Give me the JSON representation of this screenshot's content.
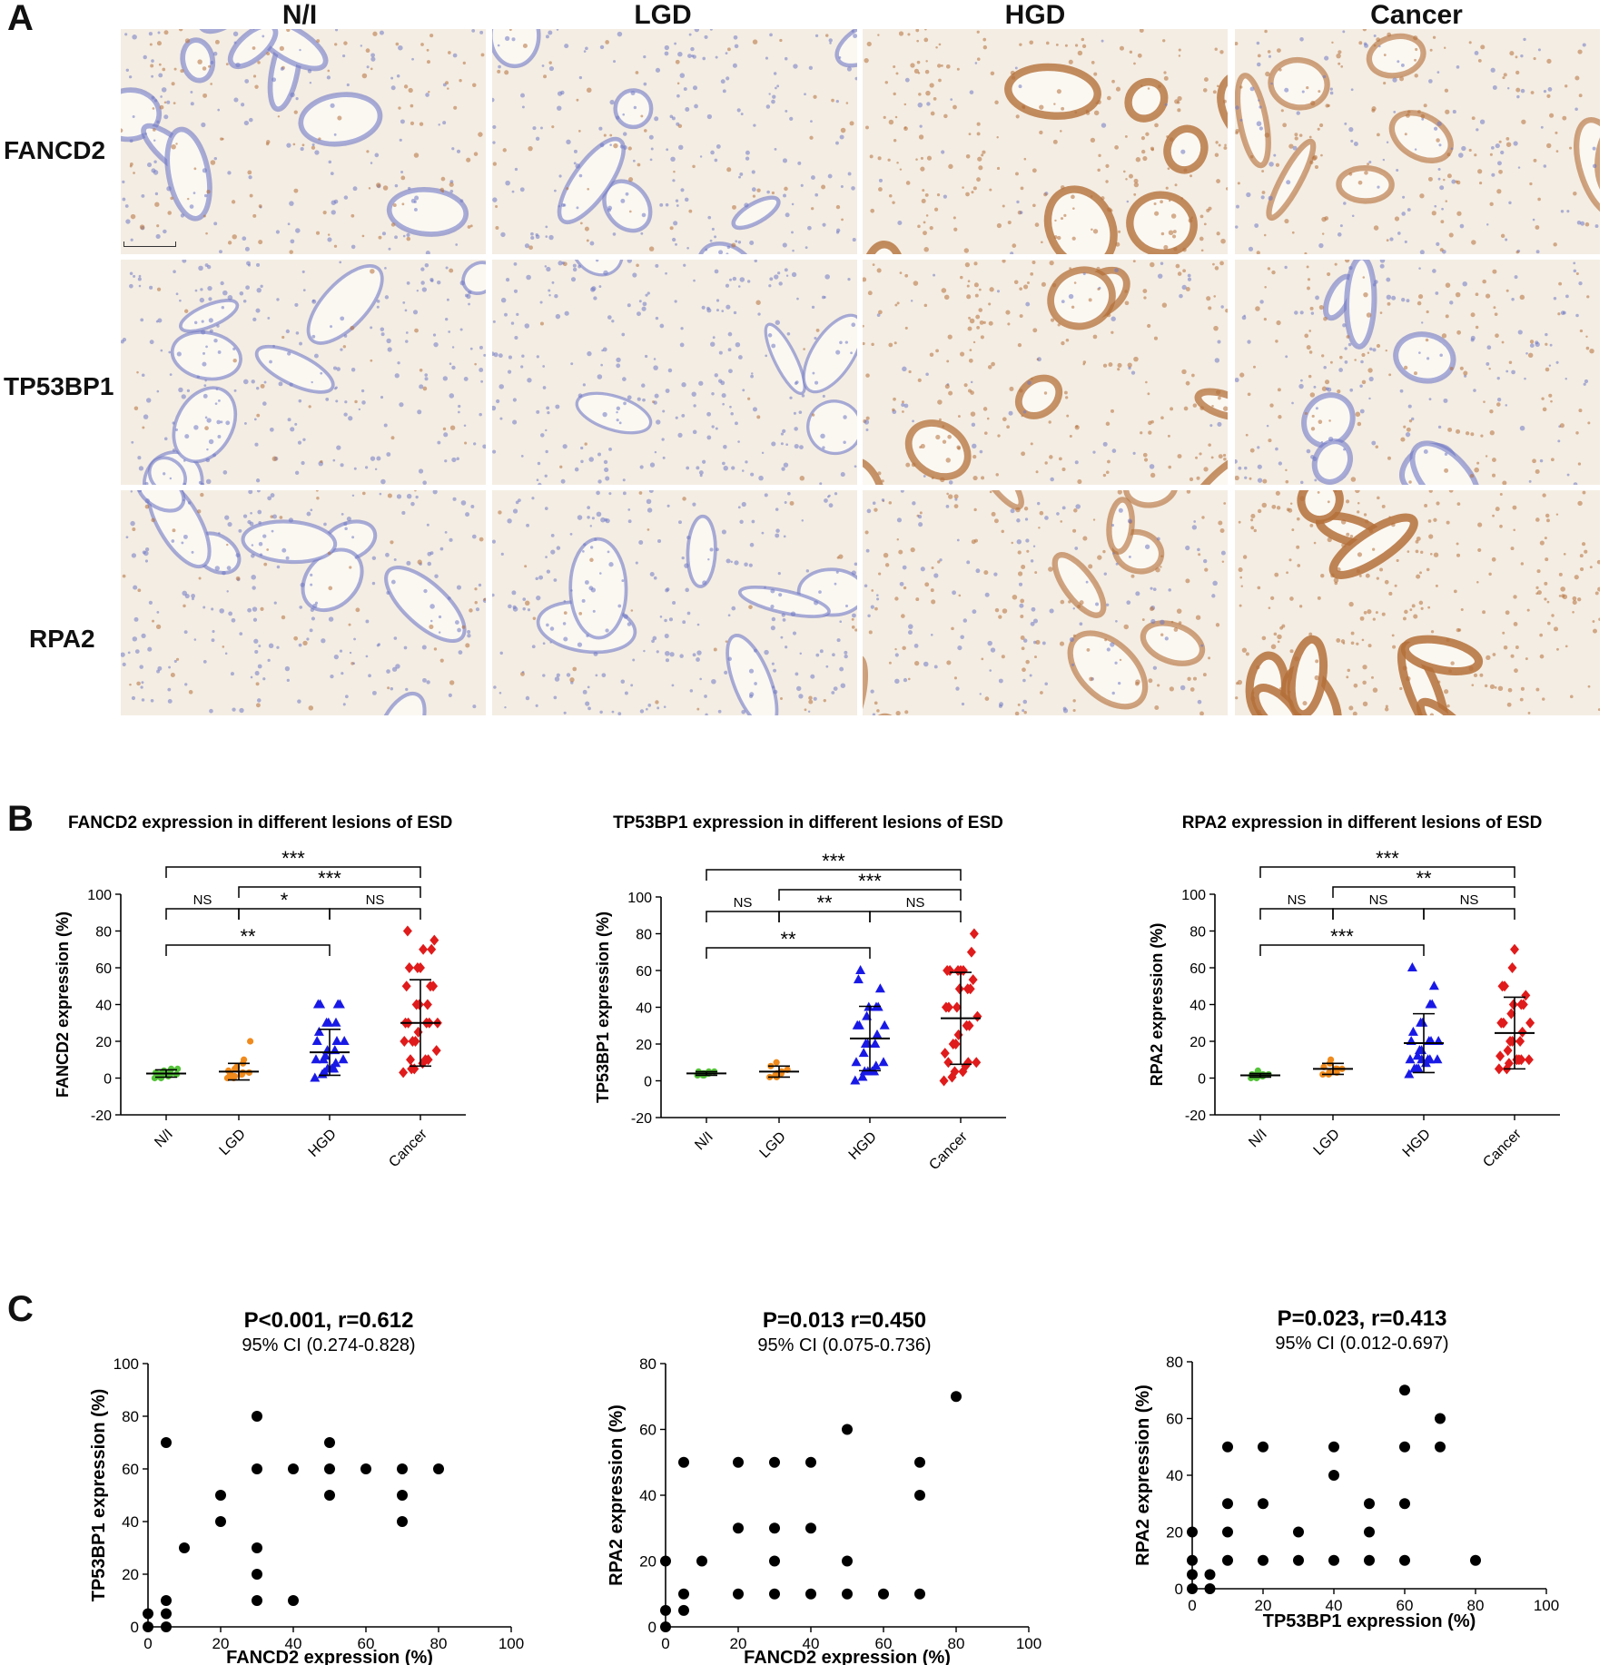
{
  "panels": {
    "a": "A",
    "b": "B",
    "c": "C"
  },
  "figure_a": {
    "columns": [
      "N/I",
      "LGD",
      "HGD",
      "Cancer"
    ],
    "rows": [
      "FANCD2",
      "TP53BP1",
      "RPA2"
    ],
    "stain_colors": {
      "hematoxylin": "#6f78c4",
      "dab": "#b4703a",
      "background": "#f4ede3"
    }
  },
  "chart_data": [
    {
      "type": "scatter",
      "title": "FANCD2 expression in different lesions of ESD",
      "ylabel": "FANCD2 expression (%)",
      "categories": [
        "N/I",
        "LGD",
        "HGD",
        "Cancer"
      ],
      "ylim": [
        -20,
        100
      ],
      "yticks": [
        -20,
        0,
        20,
        40,
        60,
        80,
        100
      ],
      "series": [
        {
          "category": "N/I",
          "color": "#55c43a",
          "marker": "circle",
          "mean": 2.5,
          "sd": 2,
          "values": [
            0,
            0,
            1,
            1,
            2,
            2,
            2,
            3,
            3,
            3,
            4,
            4,
            5,
            5,
            1,
            2
          ]
        },
        {
          "category": "LGD",
          "color": "#f08a1c",
          "marker": "circle",
          "mean": 3.5,
          "sd": 4.5,
          "values": [
            0,
            0,
            1,
            2,
            2,
            3,
            3,
            4,
            5,
            5,
            6,
            8,
            10,
            20,
            1,
            2
          ]
        },
        {
          "category": "HGD",
          "color": "#1919e6",
          "marker": "triangle",
          "mean": 14,
          "sd": 12.5,
          "values": [
            0,
            2,
            3,
            5,
            5,
            8,
            10,
            10,
            10,
            12,
            15,
            15,
            20,
            20,
            20,
            25,
            30,
            30,
            30,
            40,
            40,
            40,
            40,
            5
          ]
        },
        {
          "category": "Cancer",
          "color": "#e01b1b",
          "marker": "diamond",
          "mean": 30,
          "sd": 23.5,
          "values": [
            3,
            5,
            5,
            8,
            10,
            10,
            15,
            20,
            20,
            20,
            25,
            30,
            30,
            30,
            30,
            30,
            40,
            40,
            40,
            50,
            50,
            50,
            60,
            60,
            60,
            70,
            70,
            75,
            80,
            10
          ]
        }
      ],
      "comparisons": [
        {
          "from": "N/I",
          "to": "Cancer",
          "label": "***"
        },
        {
          "from": "LGD",
          "to": "Cancer",
          "label": "***"
        },
        {
          "from": "N/I",
          "to": "LGD",
          "label": "NS"
        },
        {
          "from": "LGD",
          "to": "HGD",
          "label": "*"
        },
        {
          "from": "HGD",
          "to": "Cancer",
          "label": "NS"
        },
        {
          "from": "N/I",
          "to": "HGD",
          "label": "**"
        }
      ]
    },
    {
      "type": "scatter",
      "title": "TP53BP1 expression in different lesions of ESD",
      "ylabel": "TP53BP1 expression (%)",
      "categories": [
        "N/I",
        "LGD",
        "HGD",
        "Cancer"
      ],
      "ylim": [
        -20,
        100
      ],
      "yticks": [
        -20,
        0,
        20,
        40,
        60,
        80,
        100
      ],
      "series": [
        {
          "category": "N/I",
          "color": "#55c43a",
          "marker": "circle",
          "mean": 4,
          "sd": 1,
          "values": [
            3,
            3,
            4,
            4,
            4,
            5,
            5,
            5,
            3,
            4
          ]
        },
        {
          "category": "LGD",
          "color": "#f08a1c",
          "marker": "circle",
          "mean": 5,
          "sd": 3,
          "values": [
            2,
            3,
            3,
            4,
            5,
            5,
            6,
            8,
            10,
            2,
            4
          ]
        },
        {
          "category": "HGD",
          "color": "#1919e6",
          "marker": "triangle",
          "mean": 23,
          "sd": 17.5,
          "values": [
            0,
            2,
            5,
            5,
            5,
            8,
            10,
            10,
            15,
            20,
            20,
            20,
            25,
            30,
            30,
            30,
            35,
            40,
            40,
            40,
            50,
            55,
            60,
            5
          ]
        },
        {
          "category": "Cancer",
          "color": "#e01b1b",
          "marker": "diamond",
          "mean": 34,
          "sd": 25,
          "values": [
            0,
            2,
            5,
            5,
            8,
            10,
            10,
            15,
            20,
            20,
            25,
            30,
            30,
            35,
            40,
            40,
            40,
            50,
            50,
            50,
            55,
            60,
            60,
            60,
            60,
            60,
            70,
            80,
            10
          ]
        }
      ],
      "comparisons": [
        {
          "from": "N/I",
          "to": "Cancer",
          "label": "***"
        },
        {
          "from": "LGD",
          "to": "Cancer",
          "label": "***"
        },
        {
          "from": "N/I",
          "to": "LGD",
          "label": "NS"
        },
        {
          "from": "LGD",
          "to": "HGD",
          "label": "**"
        },
        {
          "from": "HGD",
          "to": "Cancer",
          "label": "NS"
        },
        {
          "from": "N/I",
          "to": "HGD",
          "label": "**"
        }
      ]
    },
    {
      "type": "scatter",
      "title": "RPA2 expression in different lesions of ESD",
      "ylabel": "RPA2 expression (%)",
      "categories": [
        "N/I",
        "LGD",
        "HGD",
        "Cancer"
      ],
      "ylim": [
        -20,
        100
      ],
      "yticks": [
        -20,
        0,
        20,
        40,
        60,
        80,
        100
      ],
      "series": [
        {
          "category": "N/I",
          "color": "#55c43a",
          "marker": "circle",
          "mean": 1.5,
          "sd": 1,
          "values": [
            0,
            0,
            1,
            1,
            1,
            2,
            2,
            2,
            3,
            4,
            1
          ]
        },
        {
          "category": "LGD",
          "color": "#f08a1c",
          "marker": "circle",
          "mean": 5,
          "sd": 3,
          "values": [
            2,
            2,
            3,
            4,
            5,
            5,
            5,
            6,
            8,
            8,
            10,
            3,
            5
          ]
        },
        {
          "category": "HGD",
          "color": "#1919e6",
          "marker": "triangle",
          "mean": 19,
          "sd": 16,
          "values": [
            2,
            5,
            5,
            8,
            10,
            10,
            10,
            10,
            12,
            15,
            15,
            20,
            20,
            20,
            20,
            25,
            30,
            30,
            40,
            40,
            50,
            60,
            5,
            10
          ]
        },
        {
          "category": "Cancer",
          "color": "#e01b1b",
          "marker": "diamond",
          "mean": 24.5,
          "sd": 19.5,
          "values": [
            5,
            5,
            8,
            10,
            10,
            10,
            10,
            12,
            15,
            20,
            20,
            20,
            25,
            30,
            30,
            30,
            35,
            40,
            40,
            40,
            45,
            50,
            50,
            60,
            70,
            10
          ]
        }
      ],
      "comparisons": [
        {
          "from": "N/I",
          "to": "Cancer",
          "label": "***"
        },
        {
          "from": "LGD",
          "to": "Cancer",
          "label": "**"
        },
        {
          "from": "N/I",
          "to": "LGD",
          "label": "NS"
        },
        {
          "from": "LGD",
          "to": "HGD",
          "label": "NS"
        },
        {
          "from": "HGD",
          "to": "Cancer",
          "label": "NS"
        },
        {
          "from": "N/I",
          "to": "HGD",
          "label": "***"
        }
      ]
    },
    {
      "type": "scatter",
      "title": "P<0.001, r=0.612",
      "subtitle": "95% CI (0.274-0.828)",
      "xlabel": "FANCD2 expression (%)",
      "ylabel": "TP53BP1 expression (%)",
      "xlim": [
        0,
        100
      ],
      "ylim": [
        0,
        100
      ],
      "xticks": [
        0,
        20,
        40,
        60,
        80,
        100
      ],
      "yticks": [
        0,
        20,
        40,
        60,
        80,
        100
      ],
      "points": [
        [
          0,
          0
        ],
        [
          0,
          5
        ],
        [
          5,
          0
        ],
        [
          5,
          5
        ],
        [
          5,
          10
        ],
        [
          5,
          70
        ],
        [
          10,
          30
        ],
        [
          20,
          40
        ],
        [
          20,
          50
        ],
        [
          30,
          10
        ],
        [
          30,
          20
        ],
        [
          30,
          30
        ],
        [
          30,
          60
        ],
        [
          30,
          80
        ],
        [
          40,
          10
        ],
        [
          40,
          60
        ],
        [
          50,
          50
        ],
        [
          50,
          60
        ],
        [
          50,
          70
        ],
        [
          60,
          60
        ],
        [
          70,
          40
        ],
        [
          70,
          50
        ],
        [
          70,
          60
        ],
        [
          80,
          60
        ]
      ]
    },
    {
      "type": "scatter",
      "title": "P=0.013  r=0.450",
      "subtitle": "95% CI (0.075-0.736)",
      "xlabel": "FANCD2 expression (%)",
      "ylabel": "RPA2 expression (%)",
      "xlim": [
        0,
        100
      ],
      "ylim": [
        0,
        80
      ],
      "xticks": [
        0,
        20,
        40,
        60,
        80,
        100
      ],
      "yticks": [
        0,
        20,
        40,
        60,
        80
      ],
      "points": [
        [
          0,
          0
        ],
        [
          0,
          5
        ],
        [
          0,
          20
        ],
        [
          5,
          5
        ],
        [
          5,
          10
        ],
        [
          5,
          50
        ],
        [
          10,
          20
        ],
        [
          20,
          10
        ],
        [
          20,
          30
        ],
        [
          20,
          50
        ],
        [
          30,
          10
        ],
        [
          30,
          20
        ],
        [
          30,
          30
        ],
        [
          30,
          50
        ],
        [
          40,
          10
        ],
        [
          40,
          30
        ],
        [
          40,
          50
        ],
        [
          50,
          10
        ],
        [
          50,
          20
        ],
        [
          50,
          60
        ],
        [
          60,
          10
        ],
        [
          70,
          10
        ],
        [
          70,
          40
        ],
        [
          70,
          50
        ],
        [
          80,
          70
        ]
      ]
    },
    {
      "type": "scatter",
      "title": "P=0.023, r=0.413",
      "subtitle": "95% CI (0.012-0.697)",
      "xlabel": "TP53BP1 expression (%)",
      "ylabel": "RPA2 expression (%)",
      "xlim": [
        0,
        100
      ],
      "ylim": [
        0,
        80
      ],
      "xticks": [
        0,
        20,
        40,
        60,
        80,
        100
      ],
      "yticks": [
        0,
        20,
        40,
        60,
        80
      ],
      "points": [
        [
          0,
          0
        ],
        [
          0,
          5
        ],
        [
          0,
          10
        ],
        [
          0,
          20
        ],
        [
          5,
          0
        ],
        [
          5,
          5
        ],
        [
          10,
          10
        ],
        [
          10,
          20
        ],
        [
          10,
          30
        ],
        [
          10,
          50
        ],
        [
          20,
          10
        ],
        [
          20,
          30
        ],
        [
          20,
          50
        ],
        [
          30,
          10
        ],
        [
          30,
          20
        ],
        [
          40,
          10
        ],
        [
          40,
          40
        ],
        [
          40,
          50
        ],
        [
          50,
          10
        ],
        [
          50,
          20
        ],
        [
          50,
          30
        ],
        [
          60,
          10
        ],
        [
          60,
          30
        ],
        [
          60,
          50
        ],
        [
          60,
          70
        ],
        [
          70,
          50
        ],
        [
          70,
          60
        ],
        [
          80,
          10
        ]
      ]
    }
  ]
}
